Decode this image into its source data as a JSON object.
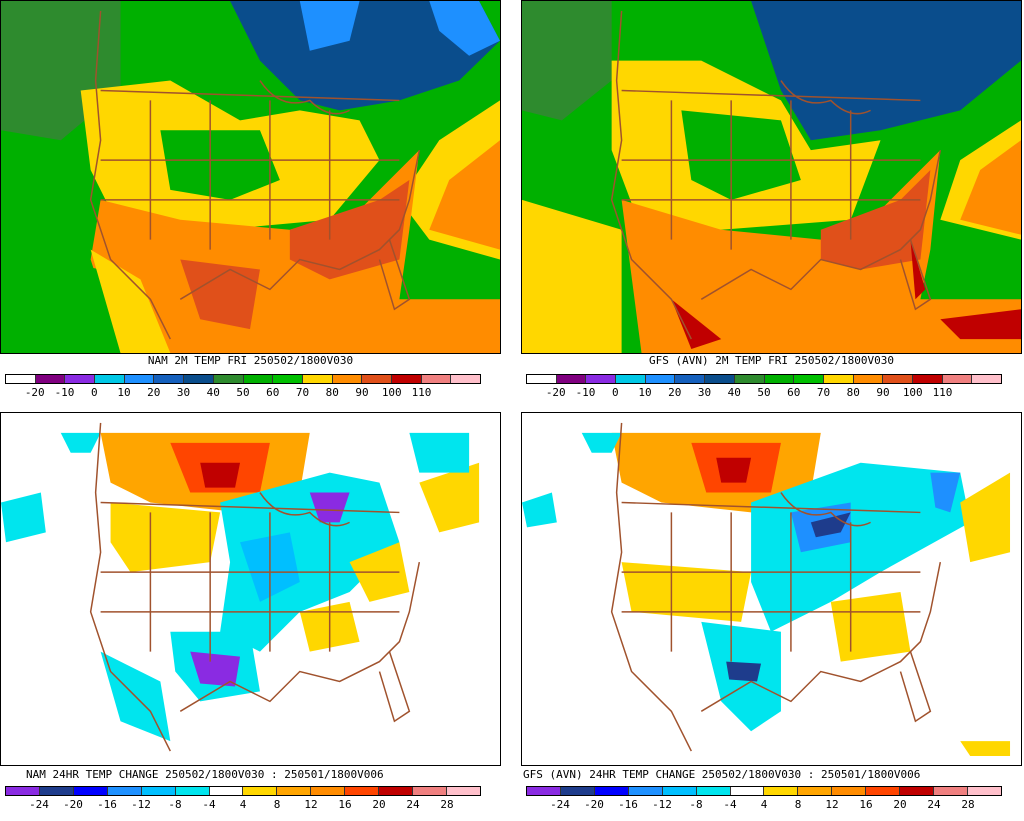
{
  "panels": [
    {
      "id": "nam-temp",
      "caption": "NAM 2M TEMP  FRI 250502/1800V030",
      "legend_ticks": [
        "-20",
        "-10",
        "0",
        "10",
        "20",
        "30",
        "40",
        "50",
        "60",
        "70",
        "80",
        "90",
        "100",
        "110"
      ],
      "legend_colors": [
        "#ffffff",
        "#800080",
        "#8a2be2",
        "#00c8e6",
        "#1e90ff",
        "#1560bd",
        "#0a4d8c",
        "#2e8b2e",
        "#00b000",
        "#00c000",
        "#ffd700",
        "#ff8c00",
        "#e0501a",
        "#c00000",
        "#f08080",
        "#ffc0cb"
      ]
    },
    {
      "id": "gfs-temp",
      "caption": "GFS (AVN) 2M TEMP  FRI 250502/1800V030",
      "legend_ticks": [
        "-20",
        "-10",
        "0",
        "10",
        "20",
        "30",
        "40",
        "50",
        "60",
        "70",
        "80",
        "90",
        "100",
        "110"
      ],
      "legend_colors": [
        "#ffffff",
        "#800080",
        "#8a2be2",
        "#00c8e6",
        "#1e90ff",
        "#1560bd",
        "#0a4d8c",
        "#2e8b2e",
        "#00b000",
        "#00c000",
        "#ffd700",
        "#ff8c00",
        "#e0501a",
        "#c00000",
        "#f08080",
        "#ffc0cb"
      ]
    },
    {
      "id": "nam-change",
      "caption": "NAM 24HR TEMP CHANGE 250502/1800V030 : 250501/1800V006",
      "legend_ticks": [
        "-24",
        "-20",
        "-16",
        "-12",
        "-8",
        "-4",
        "4",
        "8",
        "12",
        "16",
        "20",
        "24",
        "28"
      ],
      "legend_colors": [
        "#8a2be2",
        "#1e3c8c",
        "#0000ff",
        "#1e90ff",
        "#00bfff",
        "#00e5ee",
        "#ffffff",
        "#ffd700",
        "#ffa500",
        "#ff8c00",
        "#ff4500",
        "#c00000",
        "#f08080",
        "#ffc0cb"
      ]
    },
    {
      "id": "gfs-change",
      "caption": "GFS (AVN) 24HR TEMP CHANGE 250502/1800V030 : 250501/1800V006",
      "legend_ticks": [
        "-24",
        "-20",
        "-16",
        "-12",
        "-8",
        "-4",
        "4",
        "8",
        "12",
        "16",
        "20",
        "24",
        "28"
      ],
      "legend_colors": [
        "#8a2be2",
        "#1e3c8c",
        "#0000ff",
        "#1e90ff",
        "#00bfff",
        "#00e5ee",
        "#ffffff",
        "#ffd700",
        "#ffa500",
        "#ff8c00",
        "#ff4500",
        "#c00000",
        "#f08080",
        "#ffc0cb"
      ]
    }
  ],
  "map_colors": {
    "border": "#a0522d",
    "warm_ocean": "#ff8c00",
    "hot": "#e0501a",
    "mild": "#ffd700",
    "green": "#00b000",
    "dark_green": "#2e8b2e",
    "blue": "#0a4d8c",
    "light_blue": "#1e90ff",
    "cyan": "#00e5ee",
    "purple": "#8a2be2"
  }
}
